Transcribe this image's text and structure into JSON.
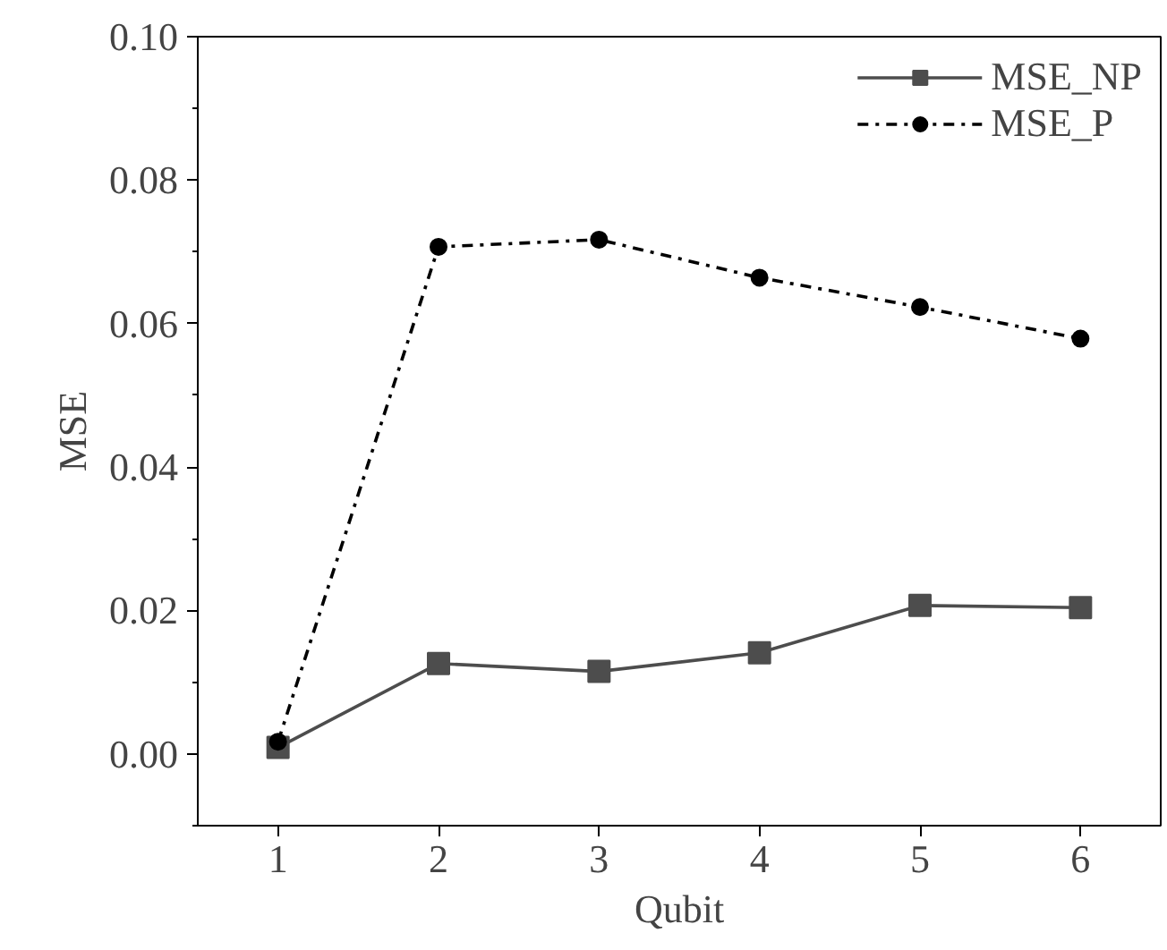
{
  "chart_data": {
    "type": "line",
    "xlabel": "Qubit",
    "ylabel": "MSE",
    "x": [
      1,
      2,
      3,
      4,
      5,
      6
    ],
    "xlim": [
      0.5,
      6.5
    ],
    "xticks": [
      1,
      2,
      3,
      4,
      5,
      6
    ],
    "ylim": [
      -0.01,
      0.1
    ],
    "yticks": [
      {
        "value": 0,
        "label": "0.00"
      },
      {
        "value": 0.02,
        "label": "0.02"
      },
      {
        "value": 0.04,
        "label": "0.04"
      },
      {
        "value": 0.06,
        "label": "0.06"
      },
      {
        "value": 0.08,
        "label": "0.08"
      },
      {
        "value": 0.1,
        "label": "0.10"
      }
    ],
    "grid": false,
    "legend": "top right",
    "series": [
      {
        "name": "MSE_NP",
        "color": "#4d4d4d",
        "marker": "square",
        "line_style": "solid",
        "values": [
          0.0009,
          0.0126,
          0.0115,
          0.0141,
          0.0207,
          0.0204
        ]
      },
      {
        "name": "MSE_P",
        "color": "#000000",
        "marker": "circle",
        "line_style": "dashdot",
        "values": [
          0.0017,
          0.0707,
          0.0717,
          0.0664,
          0.0623,
          0.0579
        ]
      }
    ]
  }
}
